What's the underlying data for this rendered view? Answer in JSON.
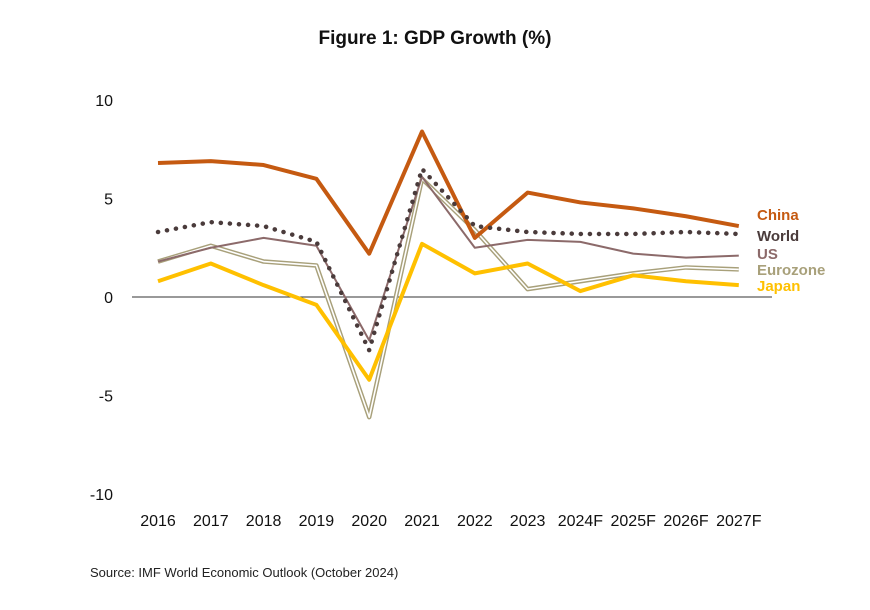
{
  "chart_data": {
    "type": "line",
    "title": "Figure 1: GDP Growth (%)",
    "xlabel": "",
    "ylabel": "",
    "categories": [
      "2016",
      "2017",
      "2018",
      "2019",
      "2020",
      "2021",
      "2022",
      "2023",
      "2024F",
      "2025F",
      "2026F",
      "2027F"
    ],
    "ylim": [
      -10,
      10
    ],
    "yticks": [
      10,
      5,
      0,
      -5,
      -10
    ],
    "grid": false,
    "legend": "labels at line ends (right)",
    "series": [
      {
        "name": "China",
        "color": "#C55A11",
        "style": "solid-thick",
        "values": [
          6.8,
          6.9,
          6.7,
          6.0,
          2.2,
          8.4,
          3.0,
          5.3,
          4.8,
          4.5,
          4.1,
          3.6
        ]
      },
      {
        "name": "World",
        "color": "#4A3B3B",
        "style": "dotted",
        "values": [
          3.3,
          3.8,
          3.6,
          2.8,
          -2.7,
          6.5,
          3.6,
          3.3,
          3.2,
          3.2,
          3.3,
          3.2
        ]
      },
      {
        "name": "US",
        "color": "#8C6A6A",
        "style": "solid-thin",
        "values": [
          1.8,
          2.5,
          3.0,
          2.6,
          -2.2,
          6.1,
          2.5,
          2.9,
          2.8,
          2.2,
          2.0,
          2.1
        ]
      },
      {
        "name": "Eurozone",
        "color": "#A8A07A",
        "style": "double",
        "values": [
          1.8,
          2.6,
          1.8,
          1.6,
          -6.1,
          6.0,
          3.4,
          0.4,
          0.8,
          1.2,
          1.5,
          1.4
        ]
      },
      {
        "name": "Japan",
        "color": "#FFC000",
        "style": "solid-thick",
        "values": [
          0.8,
          1.7,
          0.6,
          -0.4,
          -4.2,
          2.7,
          1.2,
          1.7,
          0.3,
          1.1,
          0.8,
          0.6
        ]
      }
    ]
  },
  "source": "Source: IMF World Economic Outlook (October 2024)"
}
